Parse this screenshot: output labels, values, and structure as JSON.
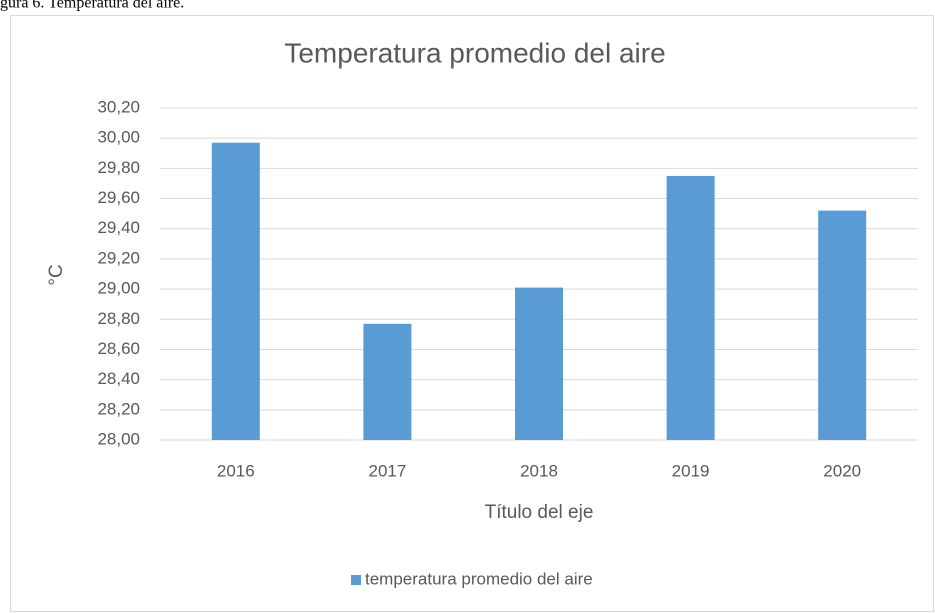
{
  "caption": "gura 6. Temperatura del aire.",
  "chart_data": {
    "type": "bar",
    "title": "Temperatura promedio del aire",
    "categories": [
      "2016",
      "2017",
      "2018",
      "2019",
      "2020"
    ],
    "series": [
      {
        "name": "temperatura promedio del aire",
        "color": "#5b9bd5",
        "values": [
          29.97,
          28.77,
          29.01,
          29.75,
          29.52
        ]
      }
    ],
    "ylim": [
      28,
      30.2
    ],
    "yticks": [
      {
        "value": 28,
        "label": "28,00"
      },
      {
        "value": 28.2,
        "label": "28,20"
      },
      {
        "value": 28.4,
        "label": "28,40"
      },
      {
        "value": 28.6,
        "label": "28,60"
      },
      {
        "value": 28.8,
        "label": "28,80"
      },
      {
        "value": 29,
        "label": "29,00"
      },
      {
        "value": 29.2,
        "label": "29,20"
      },
      {
        "value": 29.4,
        "label": "29,40"
      },
      {
        "value": 29.6,
        "label": "29,60"
      },
      {
        "value": 29.8,
        "label": "29,80"
      },
      {
        "value": 30,
        "label": "30,00"
      },
      {
        "value": 30.2,
        "label": "30,20"
      }
    ],
    "ylabel": "°C",
    "xlabel": "Título del eje",
    "grid": true,
    "legend": "bottom"
  }
}
